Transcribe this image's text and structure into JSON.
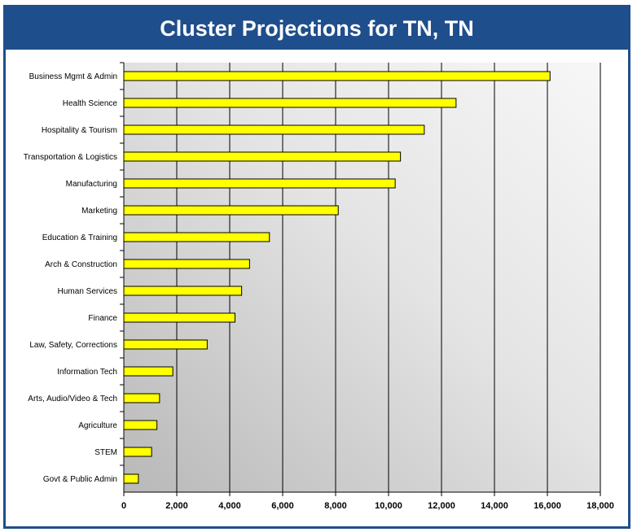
{
  "chart_data": {
    "type": "bar",
    "orientation": "horizontal",
    "title": "Cluster Projections for TN, TN",
    "categories": [
      "Business Mgmt & Admin",
      "Health Science",
      "Hospitality & Tourism",
      "Transportation & Logistics",
      "Manufacturing",
      "Marketing",
      "Education & Training",
      "Arch & Construction",
      "Human Services",
      "Finance",
      "Law, Safety, Corrections",
      "Information Tech",
      "Arts, Audio/Video & Tech",
      "Agriculture",
      "STEM",
      "Govt & Public Admin"
    ],
    "values": [
      16100,
      12550,
      11350,
      10450,
      10250,
      8100,
      5500,
      4750,
      4450,
      4200,
      3150,
      1850,
      1350,
      1250,
      1050,
      550
    ],
    "xlim": [
      0,
      18000
    ],
    "xticks": [
      "0",
      "2,000",
      "4,000",
      "6,000",
      "8,000",
      "10,000",
      "12,000",
      "14,000",
      "16,000",
      "18,000"
    ],
    "xlabel": "",
    "ylabel": "",
    "grid": "vertical",
    "legend": "none",
    "bar_color": "#ffff00",
    "title_bar_color": "#1f4e8c"
  }
}
